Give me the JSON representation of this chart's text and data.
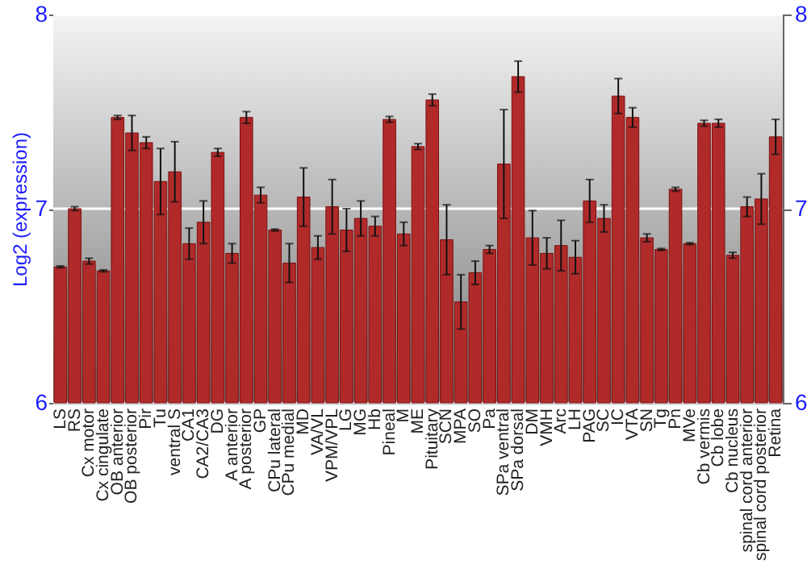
{
  "chart_data": {
    "type": "bar",
    "ylabel": "Log2 (expression)",
    "categories": [
      "LS",
      "RS",
      "Cx motor",
      "Cx cingulate",
      "OB anterior",
      "OB posterior",
      "Pir",
      "Tu",
      "ventral S",
      "CA1",
      "CA2/CA3",
      "DG",
      "A anterior",
      "A posterior",
      "GP",
      "CPu lateral",
      "CPu medial",
      "MD",
      "VA/VL",
      "VPM/VPL",
      "LG",
      "MG",
      "Hb",
      "Pineal",
      "M",
      "ME",
      "Pituitary",
      "SCN",
      "MPA",
      "SO",
      "Pa",
      "SPa ventral",
      "SPa dorsal",
      "DM",
      "VMH",
      "Arc",
      "LH",
      "PAG",
      "SC",
      "IC",
      "VTA",
      "SN",
      "Tg",
      "Pn",
      "MVe",
      "Cb vermis",
      "Cb lobe",
      "Cb nucleus",
      "spinal cord anterior",
      "spinal cord posterior",
      "Retina"
    ],
    "values": [
      6.7,
      7.0,
      6.73,
      6.68,
      7.47,
      7.39,
      7.34,
      7.14,
      7.19,
      6.82,
      6.93,
      7.29,
      6.77,
      7.47,
      7.07,
      6.89,
      6.72,
      7.06,
      6.8,
      7.01,
      6.89,
      6.95,
      6.91,
      7.46,
      6.87,
      7.32,
      7.56,
      6.84,
      6.52,
      6.67,
      6.79,
      7.23,
      7.68,
      6.85,
      6.77,
      6.81,
      6.75,
      7.04,
      6.95,
      7.58,
      7.47,
      6.85,
      6.79,
      7.1,
      6.82,
      7.44,
      7.44,
      6.76,
      7.01,
      7.05,
      7.37
    ],
    "errors": [
      0.005,
      0.01,
      0.015,
      0.005,
      0.01,
      0.09,
      0.03,
      0.17,
      0.155,
      0.08,
      0.11,
      0.02,
      0.05,
      0.03,
      0.04,
      0.005,
      0.1,
      0.15,
      0.06,
      0.14,
      0.11,
      0.09,
      0.05,
      0.015,
      0.06,
      0.015,
      0.03,
      0.18,
      0.14,
      0.06,
      0.02,
      0.28,
      0.08,
      0.14,
      0.08,
      0.13,
      0.085,
      0.11,
      0.07,
      0.09,
      0.05,
      0.02,
      0.005,
      0.01,
      0.005,
      0.015,
      0.02,
      0.015,
      0.05,
      0.13,
      0.09
    ],
    "color": "#b02a2a",
    "ylim": [
      6,
      8
    ],
    "yticks": [
      6,
      7,
      8
    ],
    "y2lim": [
      6,
      8
    ],
    "y2ticks": [
      6,
      7,
      8
    ],
    "grid": "y"
  }
}
